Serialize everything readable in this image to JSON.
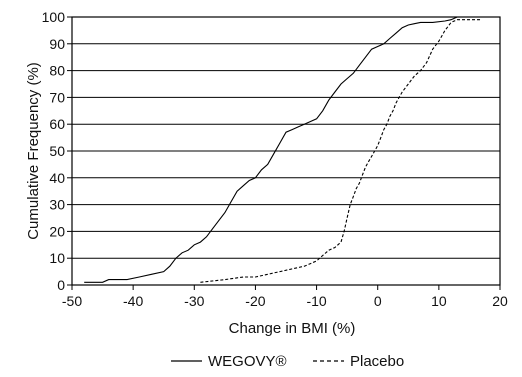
{
  "chart_data": {
    "type": "line",
    "title": "",
    "xlabel": "Change in BMI (%)",
    "ylabel": "Cumulative Frequency (%)",
    "xlim": [
      -50,
      20
    ],
    "ylim": [
      0,
      100
    ],
    "xticks": [
      -50,
      -40,
      -30,
      -20,
      -10,
      0,
      10,
      20
    ],
    "yticks": [
      0,
      10,
      20,
      30,
      40,
      50,
      60,
      70,
      80,
      90,
      100
    ],
    "grid": "horizontal",
    "legend_position": "bottom",
    "series": [
      {
        "name": "WEGOVY®",
        "style": "solid",
        "color": "#000000",
        "points": [
          [
            -48,
            1
          ],
          [
            -45,
            1
          ],
          [
            -44,
            2
          ],
          [
            -41,
            2
          ],
          [
            -39,
            3
          ],
          [
            -37,
            4
          ],
          [
            -35,
            5
          ],
          [
            -34,
            7
          ],
          [
            -33,
            10
          ],
          [
            -32,
            12
          ],
          [
            -31,
            13
          ],
          [
            -30,
            15
          ],
          [
            -29,
            16
          ],
          [
            -28,
            18
          ],
          [
            -27,
            21
          ],
          [
            -26,
            24
          ],
          [
            -25,
            27
          ],
          [
            -24,
            31
          ],
          [
            -23,
            35
          ],
          [
            -22,
            37
          ],
          [
            -21,
            39
          ],
          [
            -20,
            40
          ],
          [
            -19,
            43
          ],
          [
            -18,
            45
          ],
          [
            -17,
            49
          ],
          [
            -16,
            53
          ],
          [
            -15,
            57
          ],
          [
            -14,
            58
          ],
          [
            -13,
            59
          ],
          [
            -12,
            60
          ],
          [
            -11,
            61
          ],
          [
            -10,
            62
          ],
          [
            -9,
            65
          ],
          [
            -8,
            69
          ],
          [
            -7,
            72
          ],
          [
            -6,
            75
          ],
          [
            -5,
            77
          ],
          [
            -4,
            79
          ],
          [
            -3,
            82
          ],
          [
            -2,
            85
          ],
          [
            -1,
            88
          ],
          [
            0,
            89
          ],
          [
            1,
            90
          ],
          [
            2,
            92
          ],
          [
            3,
            94
          ],
          [
            4,
            96
          ],
          [
            5,
            97
          ],
          [
            6,
            97.5
          ],
          [
            7,
            98
          ],
          [
            9,
            98
          ],
          [
            11,
            98.5
          ],
          [
            12,
            99
          ],
          [
            13,
            100
          ]
        ]
      },
      {
        "name": "Placebo",
        "style": "dashed",
        "color": "#000000",
        "points": [
          [
            -29,
            1
          ],
          [
            -25,
            2
          ],
          [
            -22,
            3
          ],
          [
            -20,
            3
          ],
          [
            -18,
            4
          ],
          [
            -16,
            5
          ],
          [
            -14,
            6
          ],
          [
            -12,
            7
          ],
          [
            -11,
            8
          ],
          [
            -10,
            9
          ],
          [
            -9,
            11
          ],
          [
            -8,
            13
          ],
          [
            -7,
            14
          ],
          [
            -6,
            16
          ],
          [
            -5.5,
            20
          ],
          [
            -5,
            25
          ],
          [
            -4.5,
            30
          ],
          [
            -4,
            33
          ],
          [
            -3.5,
            36
          ],
          [
            -3,
            38
          ],
          [
            -2.5,
            41
          ],
          [
            -2,
            44
          ],
          [
            -1.5,
            46
          ],
          [
            -1,
            48
          ],
          [
            -0.5,
            50
          ],
          [
            0,
            52
          ],
          [
            0.5,
            55
          ],
          [
            1,
            58
          ],
          [
            1.5,
            60
          ],
          [
            2,
            63
          ],
          [
            2.5,
            65
          ],
          [
            3,
            68
          ],
          [
            3.5,
            70
          ],
          [
            4,
            72
          ],
          [
            5,
            75
          ],
          [
            6,
            78
          ],
          [
            7,
            80
          ],
          [
            8,
            83
          ],
          [
            9,
            88
          ],
          [
            10,
            91
          ],
          [
            11,
            95
          ],
          [
            12,
            98
          ],
          [
            13,
            99
          ],
          [
            15,
            99
          ],
          [
            17,
            99
          ]
        ]
      }
    ]
  }
}
